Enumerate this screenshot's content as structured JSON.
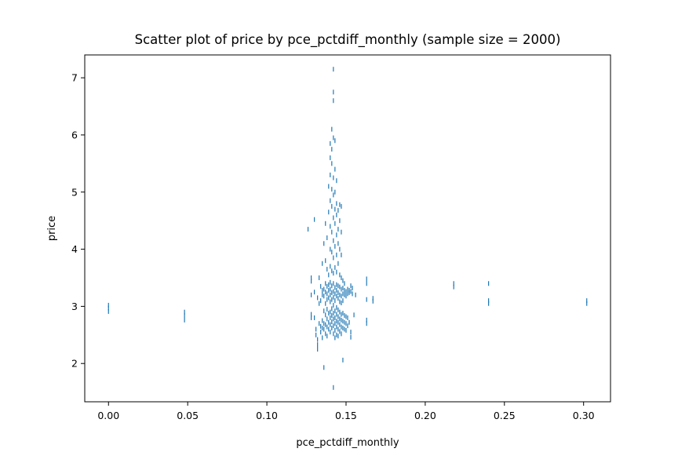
{
  "chart_data": {
    "type": "scatter",
    "title": "Scatter plot of price by pce_pctdiff_monthly (sample size = 2000)",
    "xlabel": "pce_pctdiff_monthly",
    "ylabel": "price",
    "xlim": [
      -0.015,
      0.317
    ],
    "ylim": [
      1.33,
      7.4
    ],
    "x_ticks": [
      0.0,
      0.05,
      0.1,
      0.15,
      0.2,
      0.25,
      0.3
    ],
    "x_tick_labels": [
      "0.00",
      "0.05",
      "0.10",
      "0.15",
      "0.20",
      "0.25",
      "0.30"
    ],
    "y_ticks": [
      2,
      3,
      4,
      5,
      6,
      7
    ],
    "y_tick_labels": [
      "2",
      "3",
      "4",
      "5",
      "6",
      "7"
    ],
    "grid": false,
    "marker_color": "#1f77b4",
    "marker": "vertical-line",
    "series": [
      {
        "points": [
          [
            0.0,
            3.02
          ],
          [
            0.0,
            2.97
          ],
          [
            0.0,
            2.91
          ],
          [
            0.048,
            2.9
          ],
          [
            0.048,
            2.84
          ],
          [
            0.048,
            2.76
          ],
          [
            0.128,
            3.5
          ],
          [
            0.128,
            3.44
          ],
          [
            0.128,
            3.2
          ],
          [
            0.128,
            2.86
          ],
          [
            0.128,
            2.8
          ],
          [
            0.126,
            4.35
          ],
          [
            0.13,
            4.52
          ],
          [
            0.13,
            2.8
          ],
          [
            0.13,
            3.25
          ],
          [
            0.131,
            2.6
          ],
          [
            0.131,
            2.5
          ],
          [
            0.132,
            2.42
          ],
          [
            0.132,
            2.33
          ],
          [
            0.132,
            2.25
          ],
          [
            0.132,
            3.15
          ],
          [
            0.133,
            3.05
          ],
          [
            0.133,
            2.7
          ],
          [
            0.133,
            3.5
          ],
          [
            0.134,
            3.35
          ],
          [
            0.134,
            2.65
          ],
          [
            0.134,
            2.55
          ],
          [
            0.134,
            3.1
          ],
          [
            0.135,
            3.28
          ],
          [
            0.135,
            3.2
          ],
          [
            0.135,
            2.75
          ],
          [
            0.135,
            2.62
          ],
          [
            0.135,
            2.45
          ],
          [
            0.135,
            3.75
          ],
          [
            0.136,
            3.3
          ],
          [
            0.136,
            3.18
          ],
          [
            0.136,
            2.92
          ],
          [
            0.136,
            2.7
          ],
          [
            0.136,
            2.6
          ],
          [
            0.136,
            1.93
          ],
          [
            0.136,
            4.1
          ],
          [
            0.137,
            3.4
          ],
          [
            0.137,
            3.25
          ],
          [
            0.137,
            3.05
          ],
          [
            0.137,
            2.85
          ],
          [
            0.137,
            2.68
          ],
          [
            0.137,
            2.52
          ],
          [
            0.137,
            3.8
          ],
          [
            0.137,
            4.45
          ],
          [
            0.138,
            3.35
          ],
          [
            0.138,
            3.22
          ],
          [
            0.138,
            3.12
          ],
          [
            0.138,
            2.95
          ],
          [
            0.138,
            2.78
          ],
          [
            0.138,
            2.64
          ],
          [
            0.138,
            2.48
          ],
          [
            0.138,
            3.65
          ],
          [
            0.138,
            4.2
          ],
          [
            0.139,
            3.38
          ],
          [
            0.139,
            3.28
          ],
          [
            0.139,
            3.15
          ],
          [
            0.139,
            2.88
          ],
          [
            0.139,
            2.72
          ],
          [
            0.139,
            2.6
          ],
          [
            0.139,
            3.55
          ],
          [
            0.139,
            4.65
          ],
          [
            0.139,
            5.1
          ],
          [
            0.14,
            3.42
          ],
          [
            0.14,
            3.3
          ],
          [
            0.14,
            3.2
          ],
          [
            0.14,
            3.08
          ],
          [
            0.14,
            2.9
          ],
          [
            0.14,
            2.8
          ],
          [
            0.14,
            2.68
          ],
          [
            0.14,
            2.55
          ],
          [
            0.14,
            3.7
          ],
          [
            0.14,
            4.0
          ],
          [
            0.14,
            4.4
          ],
          [
            0.14,
            4.85
          ],
          [
            0.14,
            5.3
          ],
          [
            0.14,
            5.6
          ],
          [
            0.14,
            5.85
          ],
          [
            0.141,
            3.36
          ],
          [
            0.141,
            3.24
          ],
          [
            0.141,
            3.12
          ],
          [
            0.141,
            2.96
          ],
          [
            0.141,
            2.84
          ],
          [
            0.141,
            2.73
          ],
          [
            0.141,
            2.62
          ],
          [
            0.141,
            3.62
          ],
          [
            0.141,
            3.95
          ],
          [
            0.141,
            4.3
          ],
          [
            0.141,
            4.75
          ],
          [
            0.141,
            5.05
          ],
          [
            0.141,
            5.5
          ],
          [
            0.141,
            5.75
          ],
          [
            0.141,
            6.1
          ],
          [
            0.142,
            3.4
          ],
          [
            0.142,
            3.26
          ],
          [
            0.142,
            3.16
          ],
          [
            0.142,
            3.02
          ],
          [
            0.142,
            2.88
          ],
          [
            0.142,
            2.78
          ],
          [
            0.142,
            2.66
          ],
          [
            0.142,
            2.52
          ],
          [
            0.142,
            3.58
          ],
          [
            0.142,
            3.85
          ],
          [
            0.142,
            4.15
          ],
          [
            0.142,
            4.55
          ],
          [
            0.142,
            4.95
          ],
          [
            0.142,
            5.25
          ],
          [
            0.142,
            5.95
          ],
          [
            0.142,
            6.6
          ],
          [
            0.142,
            6.75
          ],
          [
            0.142,
            7.15
          ],
          [
            0.142,
            1.58
          ],
          [
            0.143,
            3.33
          ],
          [
            0.143,
            3.22
          ],
          [
            0.143,
            3.1
          ],
          [
            0.143,
            2.92
          ],
          [
            0.143,
            2.8
          ],
          [
            0.143,
            2.7
          ],
          [
            0.143,
            2.58
          ],
          [
            0.143,
            2.45
          ],
          [
            0.143,
            3.68
          ],
          [
            0.143,
            4.05
          ],
          [
            0.143,
            4.45
          ],
          [
            0.143,
            4.7
          ],
          [
            0.143,
            5.0
          ],
          [
            0.143,
            5.4
          ],
          [
            0.143,
            5.9
          ],
          [
            0.144,
            3.38
          ],
          [
            0.144,
            3.28
          ],
          [
            0.144,
            3.18
          ],
          [
            0.144,
            2.98
          ],
          [
            0.144,
            2.86
          ],
          [
            0.144,
            2.74
          ],
          [
            0.144,
            2.64
          ],
          [
            0.144,
            2.5
          ],
          [
            0.144,
            3.6
          ],
          [
            0.144,
            3.9
          ],
          [
            0.144,
            4.25
          ],
          [
            0.144,
            4.6
          ],
          [
            0.144,
            4.8
          ],
          [
            0.144,
            5.2
          ],
          [
            0.145,
            3.36
          ],
          [
            0.145,
            3.24
          ],
          [
            0.145,
            3.14
          ],
          [
            0.145,
            2.94
          ],
          [
            0.145,
            2.82
          ],
          [
            0.145,
            2.72
          ],
          [
            0.145,
            2.6
          ],
          [
            0.145,
            2.48
          ],
          [
            0.145,
            3.75
          ],
          [
            0.145,
            4.1
          ],
          [
            0.145,
            4.35
          ],
          [
            0.145,
            4.68
          ],
          [
            0.146,
            3.34
          ],
          [
            0.146,
            3.2
          ],
          [
            0.146,
            3.08
          ],
          [
            0.146,
            2.9
          ],
          [
            0.146,
            2.78
          ],
          [
            0.146,
            2.68
          ],
          [
            0.146,
            2.56
          ],
          [
            0.146,
            3.55
          ],
          [
            0.146,
            4.0
          ],
          [
            0.146,
            4.5
          ],
          [
            0.146,
            4.78
          ],
          [
            0.147,
            3.3
          ],
          [
            0.147,
            3.18
          ],
          [
            0.147,
            3.06
          ],
          [
            0.147,
            2.86
          ],
          [
            0.147,
            2.76
          ],
          [
            0.147,
            2.64
          ],
          [
            0.147,
            2.52
          ],
          [
            0.147,
            3.5
          ],
          [
            0.147,
            3.9
          ],
          [
            0.147,
            4.3
          ],
          [
            0.147,
            4.75
          ],
          [
            0.148,
            3.32
          ],
          [
            0.148,
            3.22
          ],
          [
            0.148,
            3.1
          ],
          [
            0.148,
            2.88
          ],
          [
            0.148,
            2.74
          ],
          [
            0.148,
            2.62
          ],
          [
            0.148,
            3.45
          ],
          [
            0.148,
            2.06
          ],
          [
            0.149,
            3.28
          ],
          [
            0.149,
            3.2
          ],
          [
            0.149,
            2.84
          ],
          [
            0.149,
            2.72
          ],
          [
            0.149,
            2.6
          ],
          [
            0.149,
            3.4
          ],
          [
            0.15,
            3.26
          ],
          [
            0.15,
            3.18
          ],
          [
            0.15,
            2.82
          ],
          [
            0.15,
            2.7
          ],
          [
            0.15,
            2.58
          ],
          [
            0.151,
            3.3
          ],
          [
            0.151,
            3.22
          ],
          [
            0.151,
            2.8
          ],
          [
            0.151,
            2.66
          ],
          [
            0.152,
            3.28
          ],
          [
            0.152,
            3.24
          ],
          [
            0.152,
            2.72
          ],
          [
            0.153,
            3.36
          ],
          [
            0.153,
            3.26
          ],
          [
            0.153,
            2.55
          ],
          [
            0.153,
            2.46
          ],
          [
            0.154,
            3.32
          ],
          [
            0.154,
            3.22
          ],
          [
            0.155,
            2.85
          ],
          [
            0.156,
            3.2
          ],
          [
            0.163,
            3.48
          ],
          [
            0.163,
            3.4
          ],
          [
            0.163,
            3.12
          ],
          [
            0.163,
            2.76
          ],
          [
            0.163,
            2.7
          ],
          [
            0.167,
            3.14
          ],
          [
            0.167,
            3.09
          ],
          [
            0.218,
            3.4
          ],
          [
            0.218,
            3.34
          ],
          [
            0.24,
            3.4
          ],
          [
            0.24,
            3.1
          ],
          [
            0.24,
            3.05
          ],
          [
            0.302,
            3.1
          ],
          [
            0.302,
            3.05
          ]
        ]
      }
    ]
  }
}
